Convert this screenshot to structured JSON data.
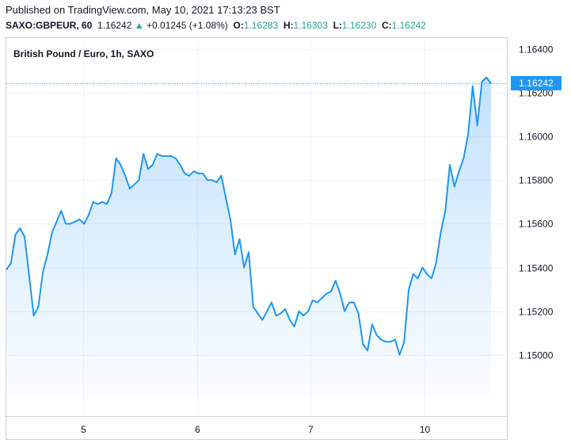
{
  "header": {
    "published": "Published on TradingView.com, May 10, 2021 17:13:23 BST",
    "symbol": "SAXO:GBPEUR, 60",
    "last": "1.16242",
    "arrow": "▲",
    "change": "+0.01245 (+1.08%)",
    "o_label": "O:",
    "o_value": "1.16283",
    "h_label": "H:",
    "h_value": "1.16303",
    "l_label": "L:",
    "l_value": "1.16230",
    "c_label": "C:",
    "c_value": "1.16242"
  },
  "price_badge": "1.16242",
  "colors": {
    "line": "#2196f3",
    "up": "#26a69a",
    "grid": "#f0f3fa",
    "axis": "#d1d4dc"
  },
  "chart_data": {
    "type": "area",
    "title": "British Pound / Euro, 1h, SAXO",
    "x_tick_labels": [
      {
        "label": "5",
        "x": 13.5
      },
      {
        "label": "6",
        "x": 33.5
      },
      {
        "label": "7",
        "x": 53.5
      },
      {
        "label": "10",
        "x": 73.5
      }
    ],
    "y_ticks": [
      1.15,
      1.152,
      1.154,
      1.156,
      1.158,
      1.16,
      1.162,
      1.164
    ],
    "y_tick_labels": [
      "1.15000",
      "1.15200",
      "1.15400",
      "1.15600",
      "1.15800",
      "1.16000",
      "1.16200",
      "1.16400"
    ],
    "xlim": [
      0,
      88
    ],
    "ylim": [
      1.1472,
      1.1645
    ],
    "last_price": 1.16242,
    "grid": true,
    "values": [
      1.1539,
      1.1542,
      1.1555,
      1.1558,
      1.1554,
      1.1536,
      1.1518,
      1.1522,
      1.1538,
      1.1546,
      1.1556,
      1.1561,
      1.1566,
      1.156,
      1.156,
      1.1561,
      1.1562,
      1.156,
      1.1564,
      1.157,
      1.1569,
      1.157,
      1.1569,
      1.1574,
      1.159,
      1.1587,
      1.1582,
      1.1576,
      1.1578,
      1.158,
      1.1592,
      1.1585,
      1.1587,
      1.1592,
      1.1591,
      1.1591,
      1.1591,
      1.159,
      1.1587,
      1.1583,
      1.1582,
      1.1584,
      1.1583,
      1.1583,
      1.158,
      1.158,
      1.1579,
      1.1582,
      1.1572,
      1.1562,
      1.1546,
      1.1553,
      1.154,
      1.1547,
      1.1522,
      1.1519,
      1.1516,
      1.152,
      1.1524,
      1.1518,
      1.1519,
      1.1521,
      1.1516,
      1.1513,
      1.152,
      1.1518,
      1.152,
      1.1525,
      1.1524,
      1.1526,
      1.1528,
      1.1529,
      1.1534,
      1.1528,
      1.152,
      1.1524,
      1.1524,
      1.1519,
      1.1505,
      1.1502,
      1.1514,
      1.1509,
      1.1507,
      1.1506,
      1.1506,
      1.1507,
      1.15,
      1.1506,
      1.153,
      1.1537,
      1.1535,
      1.154,
      1.1537,
      1.1535,
      1.1542,
      1.1556,
      1.1566,
      1.1587,
      1.1577,
      1.1584,
      1.159,
      1.1601,
      1.1623,
      1.1605,
      1.1625,
      1.1627,
      1.16242
    ]
  }
}
